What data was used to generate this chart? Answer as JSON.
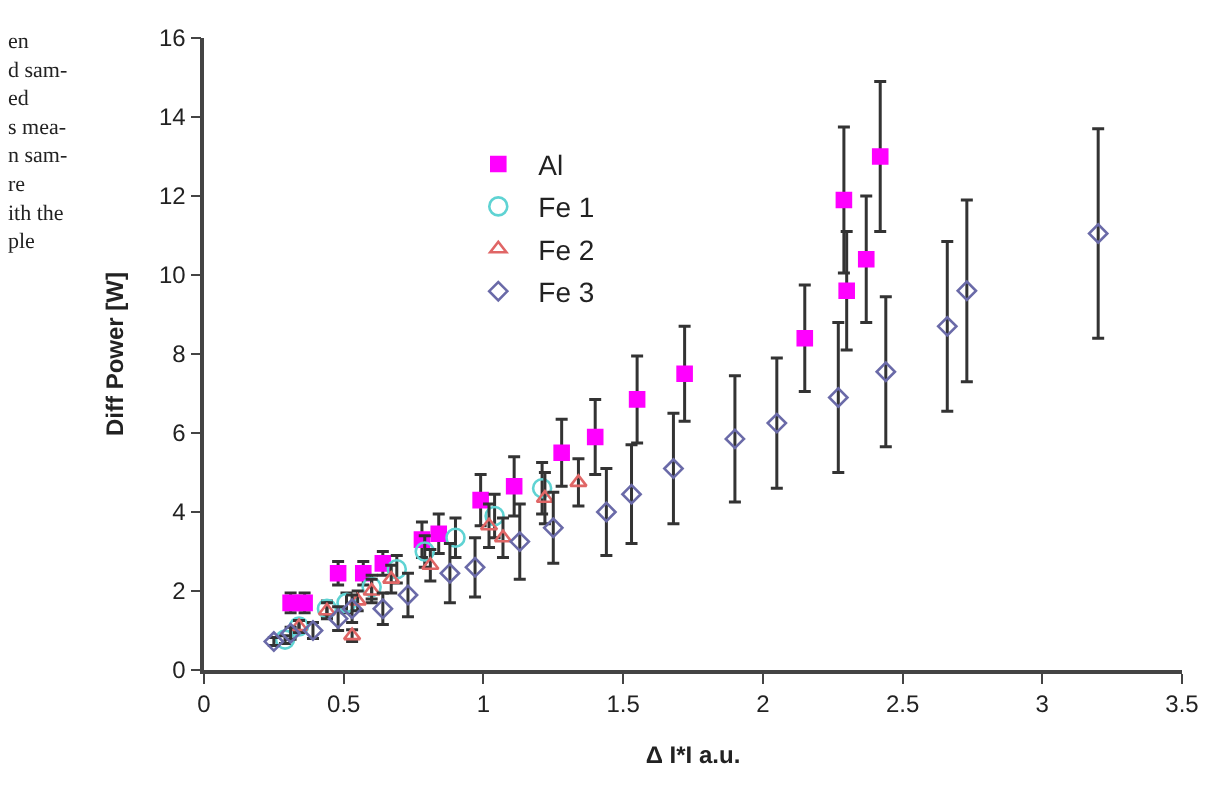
{
  "chart_data": {
    "type": "scatter",
    "xlabel": "Δ I*I a.u.",
    "ylabel": "Diff Power [W]",
    "xlim": [
      0,
      3.5
    ],
    "xticks": [
      0,
      0.5,
      1,
      1.5,
      2,
      2.5,
      3,
      3.5
    ],
    "ylim": [
      0,
      16
    ],
    "yticks": [
      0,
      2,
      4,
      6,
      8,
      10,
      12,
      14,
      16
    ],
    "legend": "top left",
    "annotations": [
      "en\nd sam-\ned\ns mea-\nn sam-\nre\nith the\nple"
    ],
    "series": [
      {
        "name": "Al",
        "color": "#ff00ff",
        "marker": "square",
        "x": [
          0.31,
          0.36,
          0.48,
          0.57,
          0.64,
          0.78,
          0.84,
          0.99,
          1.11,
          1.28,
          1.4,
          1.55,
          1.72,
          2.15,
          2.29,
          2.3,
          2.37,
          2.42
        ],
        "values": [
          1.7,
          1.7,
          2.45,
          2.45,
          2.7,
          3.3,
          3.45,
          4.3,
          4.65,
          5.5,
          5.9,
          6.85,
          7.5,
          8.4,
          11.9,
          9.6,
          10.4,
          13.0
        ],
        "errors": [
          0.25,
          0.25,
          0.3,
          0.3,
          0.3,
          0.45,
          0.5,
          0.65,
          0.75,
          0.85,
          0.95,
          1.1,
          1.2,
          1.35,
          1.85,
          1.5,
          1.6,
          1.9
        ]
      },
      {
        "name": "Fe 1",
        "color": "#5fd3d3",
        "marker": "circle",
        "x": [
          0.29,
          0.34,
          0.44,
          0.51,
          0.6,
          0.69,
          0.79,
          0.9,
          1.04,
          1.21
        ],
        "values": [
          0.77,
          1.1,
          1.55,
          1.7,
          2.1,
          2.55,
          3.0,
          3.35,
          3.9,
          4.6
        ],
        "errors": [
          0.1,
          0.15,
          0.2,
          0.25,
          0.3,
          0.35,
          0.4,
          0.5,
          0.55,
          0.65
        ]
      },
      {
        "name": "Fe 2",
        "color": "#e06666",
        "marker": "triangle",
        "x": [
          0.34,
          0.44,
          0.53,
          0.55,
          0.6,
          0.67,
          0.81,
          1.02,
          1.07,
          1.22,
          1.34
        ],
        "values": [
          1.1,
          1.5,
          0.87,
          1.75,
          2.0,
          2.3,
          2.65,
          3.65,
          3.35,
          4.35,
          4.75
        ],
        "errors": [
          0.15,
          0.2,
          0.15,
          0.25,
          0.3,
          0.35,
          0.4,
          0.55,
          0.5,
          0.65,
          0.6
        ]
      },
      {
        "name": "Fe 3",
        "color": "#6a6aa8",
        "marker": "diamond",
        "x": [
          0.25,
          0.31,
          0.39,
          0.48,
          0.53,
          0.64,
          0.73,
          0.88,
          0.97,
          1.13,
          1.25,
          1.44,
          1.53,
          1.68,
          1.9,
          2.05,
          2.27,
          2.44,
          2.66,
          2.73,
          3.2
        ],
        "values": [
          0.72,
          0.93,
          1.0,
          1.3,
          1.55,
          1.55,
          1.9,
          2.45,
          2.6,
          3.25,
          3.6,
          4.0,
          4.45,
          5.1,
          5.85,
          6.25,
          6.9,
          7.55,
          8.7,
          9.6,
          11.05
        ],
        "errors": [
          0.1,
          0.15,
          0.2,
          0.3,
          0.35,
          0.4,
          0.55,
          0.75,
          0.75,
          0.95,
          0.9,
          1.1,
          1.25,
          1.4,
          1.6,
          1.65,
          1.9,
          1.9,
          2.15,
          2.3,
          2.65
        ]
      }
    ]
  }
}
